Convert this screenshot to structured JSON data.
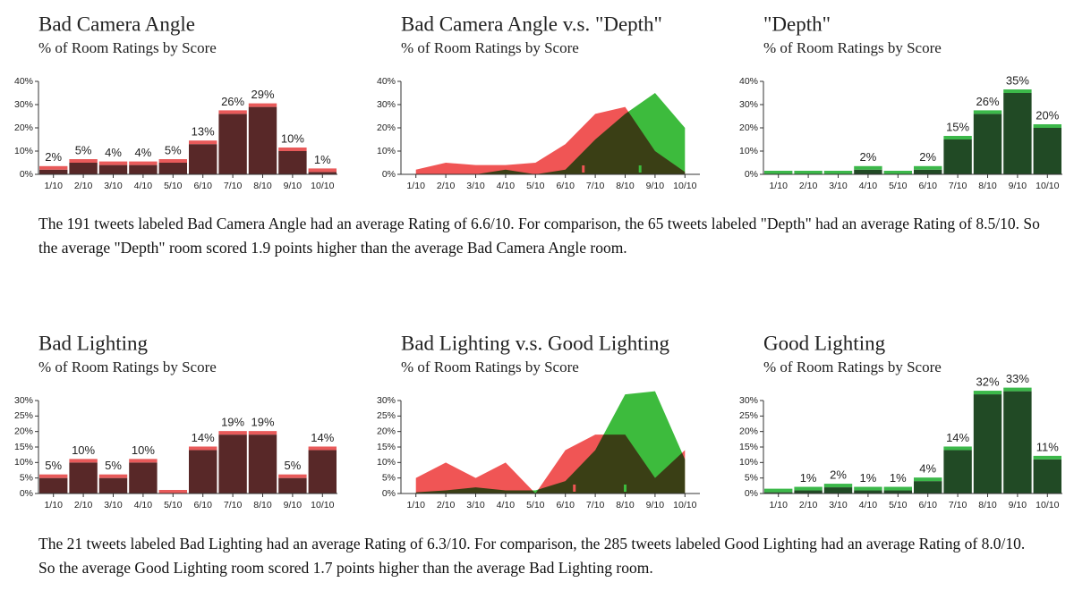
{
  "chart_data": [
    {
      "type": "bar",
      "title": "Bad Camera Angle",
      "subtitle": "% of Room Ratings by Score",
      "categories": [
        "1/10",
        "2/10",
        "3/10",
        "4/10",
        "5/10",
        "6/10",
        "7/10",
        "8/10",
        "9/10",
        "10/10"
      ],
      "values": [
        2,
        5,
        4,
        4,
        5,
        13,
        26,
        29,
        10,
        1
      ],
      "value_labels": [
        "2%",
        "5%",
        "4%",
        "4%",
        "5%",
        "13%",
        "26%",
        "29%",
        "10%",
        "1%"
      ],
      "color": "#e85a5a",
      "ylim": [
        0,
        40
      ],
      "yticks": [
        {
          "value": 0,
          "label": "0%"
        },
        {
          "value": 10,
          "label": "10%"
        },
        {
          "value": 20,
          "label": "20%"
        },
        {
          "value": 30,
          "label": "30%"
        },
        {
          "value": 40,
          "label": "40%"
        }
      ]
    },
    {
      "type": "area",
      "title": "Bad Camera Angle v.s. \"Depth\"",
      "subtitle": "% of Room Ratings by Score",
      "categories": [
        "1/10",
        "2/10",
        "3/10",
        "4/10",
        "5/10",
        "6/10",
        "7/10",
        "8/10",
        "9/10",
        "10/10"
      ],
      "series": [
        {
          "color": "#3dbb3d",
          "values": [
            0,
            0,
            0,
            2,
            0,
            2,
            15,
            26,
            35,
            20
          ]
        },
        {
          "color": "#f05555",
          "values": [
            2,
            5,
            4,
            4,
            5,
            13,
            26,
            29,
            10,
            1
          ]
        }
      ],
      "markers": [
        {
          "value": 6.6,
          "color": "#f05555"
        },
        {
          "value": 8.5,
          "color": "#3dbb3d"
        }
      ],
      "ylim": [
        0,
        40
      ],
      "yticks": [
        {
          "value": 0,
          "label": "0%"
        },
        {
          "value": 10,
          "label": "10%"
        },
        {
          "value": 20,
          "label": "20%"
        },
        {
          "value": 30,
          "label": "30%"
        },
        {
          "value": 40,
          "label": "40%"
        }
      ]
    },
    {
      "type": "bar",
      "title": "\"Depth\"",
      "subtitle": "% of Room Ratings by Score",
      "categories": [
        "1/10",
        "2/10",
        "3/10",
        "4/10",
        "5/10",
        "6/10",
        "7/10",
        "8/10",
        "9/10",
        "10/10"
      ],
      "values": [
        0,
        0,
        0,
        2,
        0,
        2,
        15,
        26,
        35,
        20
      ],
      "value_labels": [
        null,
        null,
        null,
        "2%",
        null,
        "2%",
        "15%",
        "26%",
        "35%",
        "20%"
      ],
      "color": "#3cb84a",
      "ylim": [
        0,
        40
      ],
      "yticks": [
        {
          "value": 0,
          "label": "0%"
        },
        {
          "value": 10,
          "label": "10%"
        },
        {
          "value": 20,
          "label": "20%"
        },
        {
          "value": 30,
          "label": "30%"
        },
        {
          "value": 40,
          "label": "40%"
        }
      ]
    },
    {
      "type": "bar",
      "title": "Bad Lighting",
      "subtitle": "% of Room Ratings by Score",
      "categories": [
        "1/10",
        "2/10",
        "3/10",
        "4/10",
        "5/10",
        "6/10",
        "7/10",
        "8/10",
        "9/10",
        "10/10"
      ],
      "values": [
        5,
        10,
        5,
        10,
        0,
        14,
        19,
        19,
        5,
        14
      ],
      "value_labels": [
        "5%",
        "10%",
        "5%",
        "10%",
        null,
        "14%",
        "19%",
        "19%",
        "5%",
        "14%"
      ],
      "color": "#e85a5a",
      "ylim": [
        0,
        30
      ],
      "yticks": [
        {
          "value": 0,
          "label": "0%"
        },
        {
          "value": 5,
          "label": "5%"
        },
        {
          "value": 10,
          "label": "10%"
        },
        {
          "value": 15,
          "label": "15%"
        },
        {
          "value": 20,
          "label": "20%"
        },
        {
          "value": 25,
          "label": "25%"
        },
        {
          "value": 30,
          "label": "30%"
        }
      ]
    },
    {
      "type": "area",
      "title": "Bad Lighting v.s. Good Lighting",
      "subtitle": "% of Room Ratings by Score",
      "categories": [
        "1/10",
        "2/10",
        "3/10",
        "4/10",
        "5/10",
        "6/10",
        "7/10",
        "8/10",
        "9/10",
        "10/10"
      ],
      "series": [
        {
          "color": "#3dbb3d",
          "values": [
            0.4,
            1,
            2,
            1,
            1,
            4,
            14,
            32,
            33,
            11
          ]
        },
        {
          "color": "#f05555",
          "values": [
            5,
            10,
            5,
            10,
            0,
            14,
            19,
            19,
            5,
            14
          ]
        }
      ],
      "markers": [
        {
          "value": 6.3,
          "color": "#f05555"
        },
        {
          "value": 8.0,
          "color": "#3dbb3d"
        }
      ],
      "ylim": [
        0,
        30
      ],
      "yticks": [
        {
          "value": 0,
          "label": "0%"
        },
        {
          "value": 5,
          "label": "5%"
        },
        {
          "value": 10,
          "label": "10%"
        },
        {
          "value": 15,
          "label": "15%"
        },
        {
          "value": 20,
          "label": "20%"
        },
        {
          "value": 25,
          "label": "25%"
        },
        {
          "value": 30,
          "label": "30%"
        }
      ]
    },
    {
      "type": "bar",
      "title": "Good Lighting",
      "subtitle": "% of Room Ratings by Score",
      "categories": [
        "1/10",
        "2/10",
        "3/10",
        "4/10",
        "5/10",
        "6/10",
        "7/10",
        "8/10",
        "9/10",
        "10/10"
      ],
      "values": [
        0.4,
        1,
        2,
        1,
        1,
        4,
        14,
        32,
        33,
        11
      ],
      "value_labels": [
        null,
        "1%",
        "2%",
        "1%",
        "1%",
        "4%",
        "14%",
        "32%",
        "33%",
        "11%"
      ],
      "color": "#3cb84a",
      "ylim": [
        0,
        30
      ],
      "yticks": [
        {
          "value": 0,
          "label": "0%"
        },
        {
          "value": 5,
          "label": "5%"
        },
        {
          "value": 10,
          "label": "10%"
        },
        {
          "value": 15,
          "label": "15%"
        },
        {
          "value": 20,
          "label": "20%"
        },
        {
          "value": 25,
          "label": "25%"
        },
        {
          "value": 30,
          "label": "30%"
        }
      ]
    }
  ],
  "notes": [
    "The 191 tweets labeled Bad Camera Angle had an average Rating of 6.6/10. For comparison, the 65 tweets labeled \"Depth\" had an average Rating of 8.5/10. So the average \"Depth\" room scored 1.9 points higher than the average Bad Camera Angle room.",
    "The 21 tweets labeled Bad Lighting had an average Rating of 6.3/10. For comparison, the 285 tweets labeled Good Lighting had an average Rating of 8.0/10. So the average Good Lighting room scored 1.7 points higher than the average Bad Lighting room."
  ]
}
